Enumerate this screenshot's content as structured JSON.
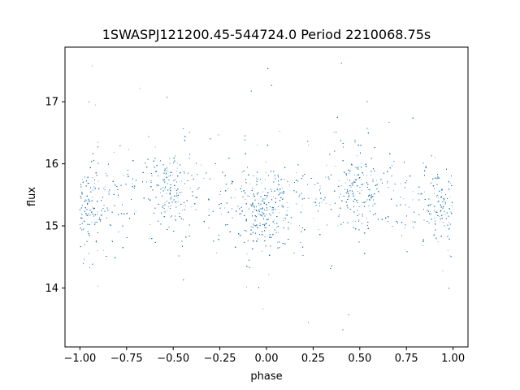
{
  "chart_data": {
    "type": "scatter",
    "title": "1SWASPJ121200.45-544724.0 Period 2210068.75s",
    "xlabel": "phase",
    "ylabel": "flux",
    "xlim": [
      -1.08,
      1.08
    ],
    "ylim": [
      13.05,
      17.88
    ],
    "xticks": [
      -1.0,
      -0.75,
      -0.5,
      -0.25,
      0.0,
      0.25,
      0.5,
      0.75,
      1.0
    ],
    "xtick_labels": [
      "−1.00",
      "−0.75",
      "−0.50",
      "−0.25",
      "0.00",
      "0.25",
      "0.50",
      "0.75",
      "1.00"
    ],
    "yticks": [
      14,
      15,
      16,
      17
    ],
    "ytick_labels": [
      "14",
      "15",
      "16",
      "17"
    ],
    "grid": false,
    "point_color": "#1f77b4",
    "series": [
      {
        "x_range": [
          -1.0,
          1.0
        ],
        "median_flux": 15.45,
        "core_flux_range": [
          14.6,
          16.4
        ],
        "outlier_flux_range": [
          13.3,
          17.7
        ],
        "dense_phase_bands": [
          -0.95,
          -0.52,
          -0.05,
          0.05,
          0.48,
          0.95
        ],
        "brighter_phases": [
          -0.5,
          0.5
        ],
        "fainter_phases": [
          -0.95,
          0.0,
          0.95
        ],
        "approx_points": 16000
      }
    ]
  }
}
